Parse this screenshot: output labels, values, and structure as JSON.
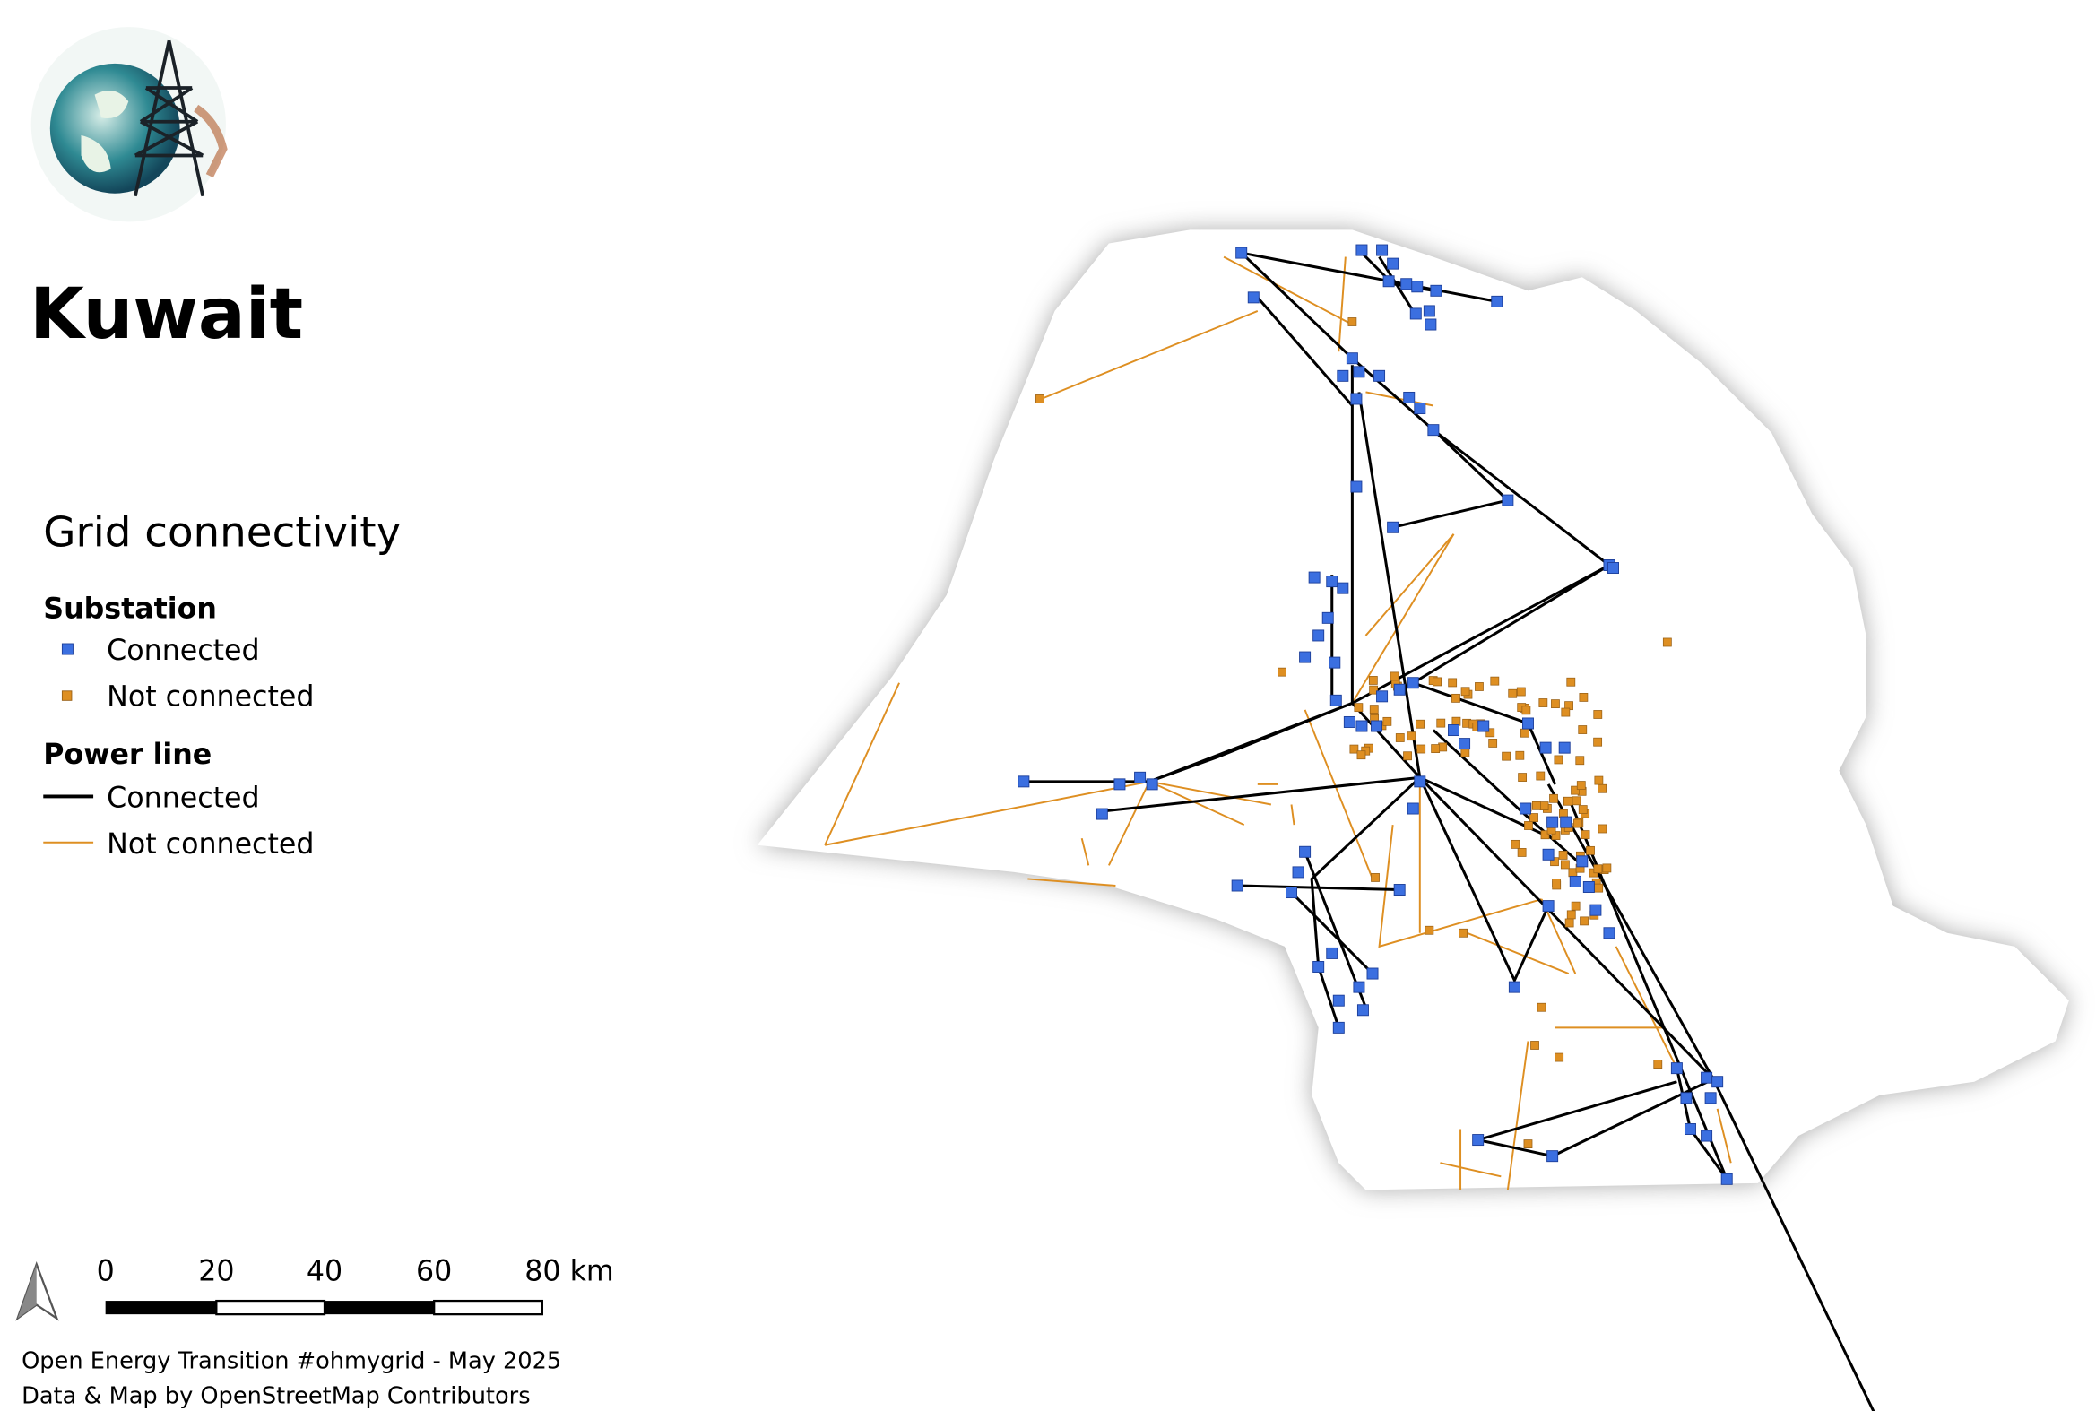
{
  "header": {
    "title": "Kuwait"
  },
  "legend": {
    "title": "Grid connectivity",
    "groups": [
      {
        "title": "Substation",
        "items": [
          "Connected",
          "Not connected"
        ]
      },
      {
        "title": "Power line",
        "items": [
          "Connected",
          "Not connected"
        ]
      }
    ]
  },
  "scale_bar": {
    "labels": [
      "0",
      "20",
      "40",
      "60",
      "80 km"
    ]
  },
  "credits": [
    "Open Energy Transition #ohmygrid - May 2025",
    "Data & Map by OpenStreetMap Contributors"
  ]
}
